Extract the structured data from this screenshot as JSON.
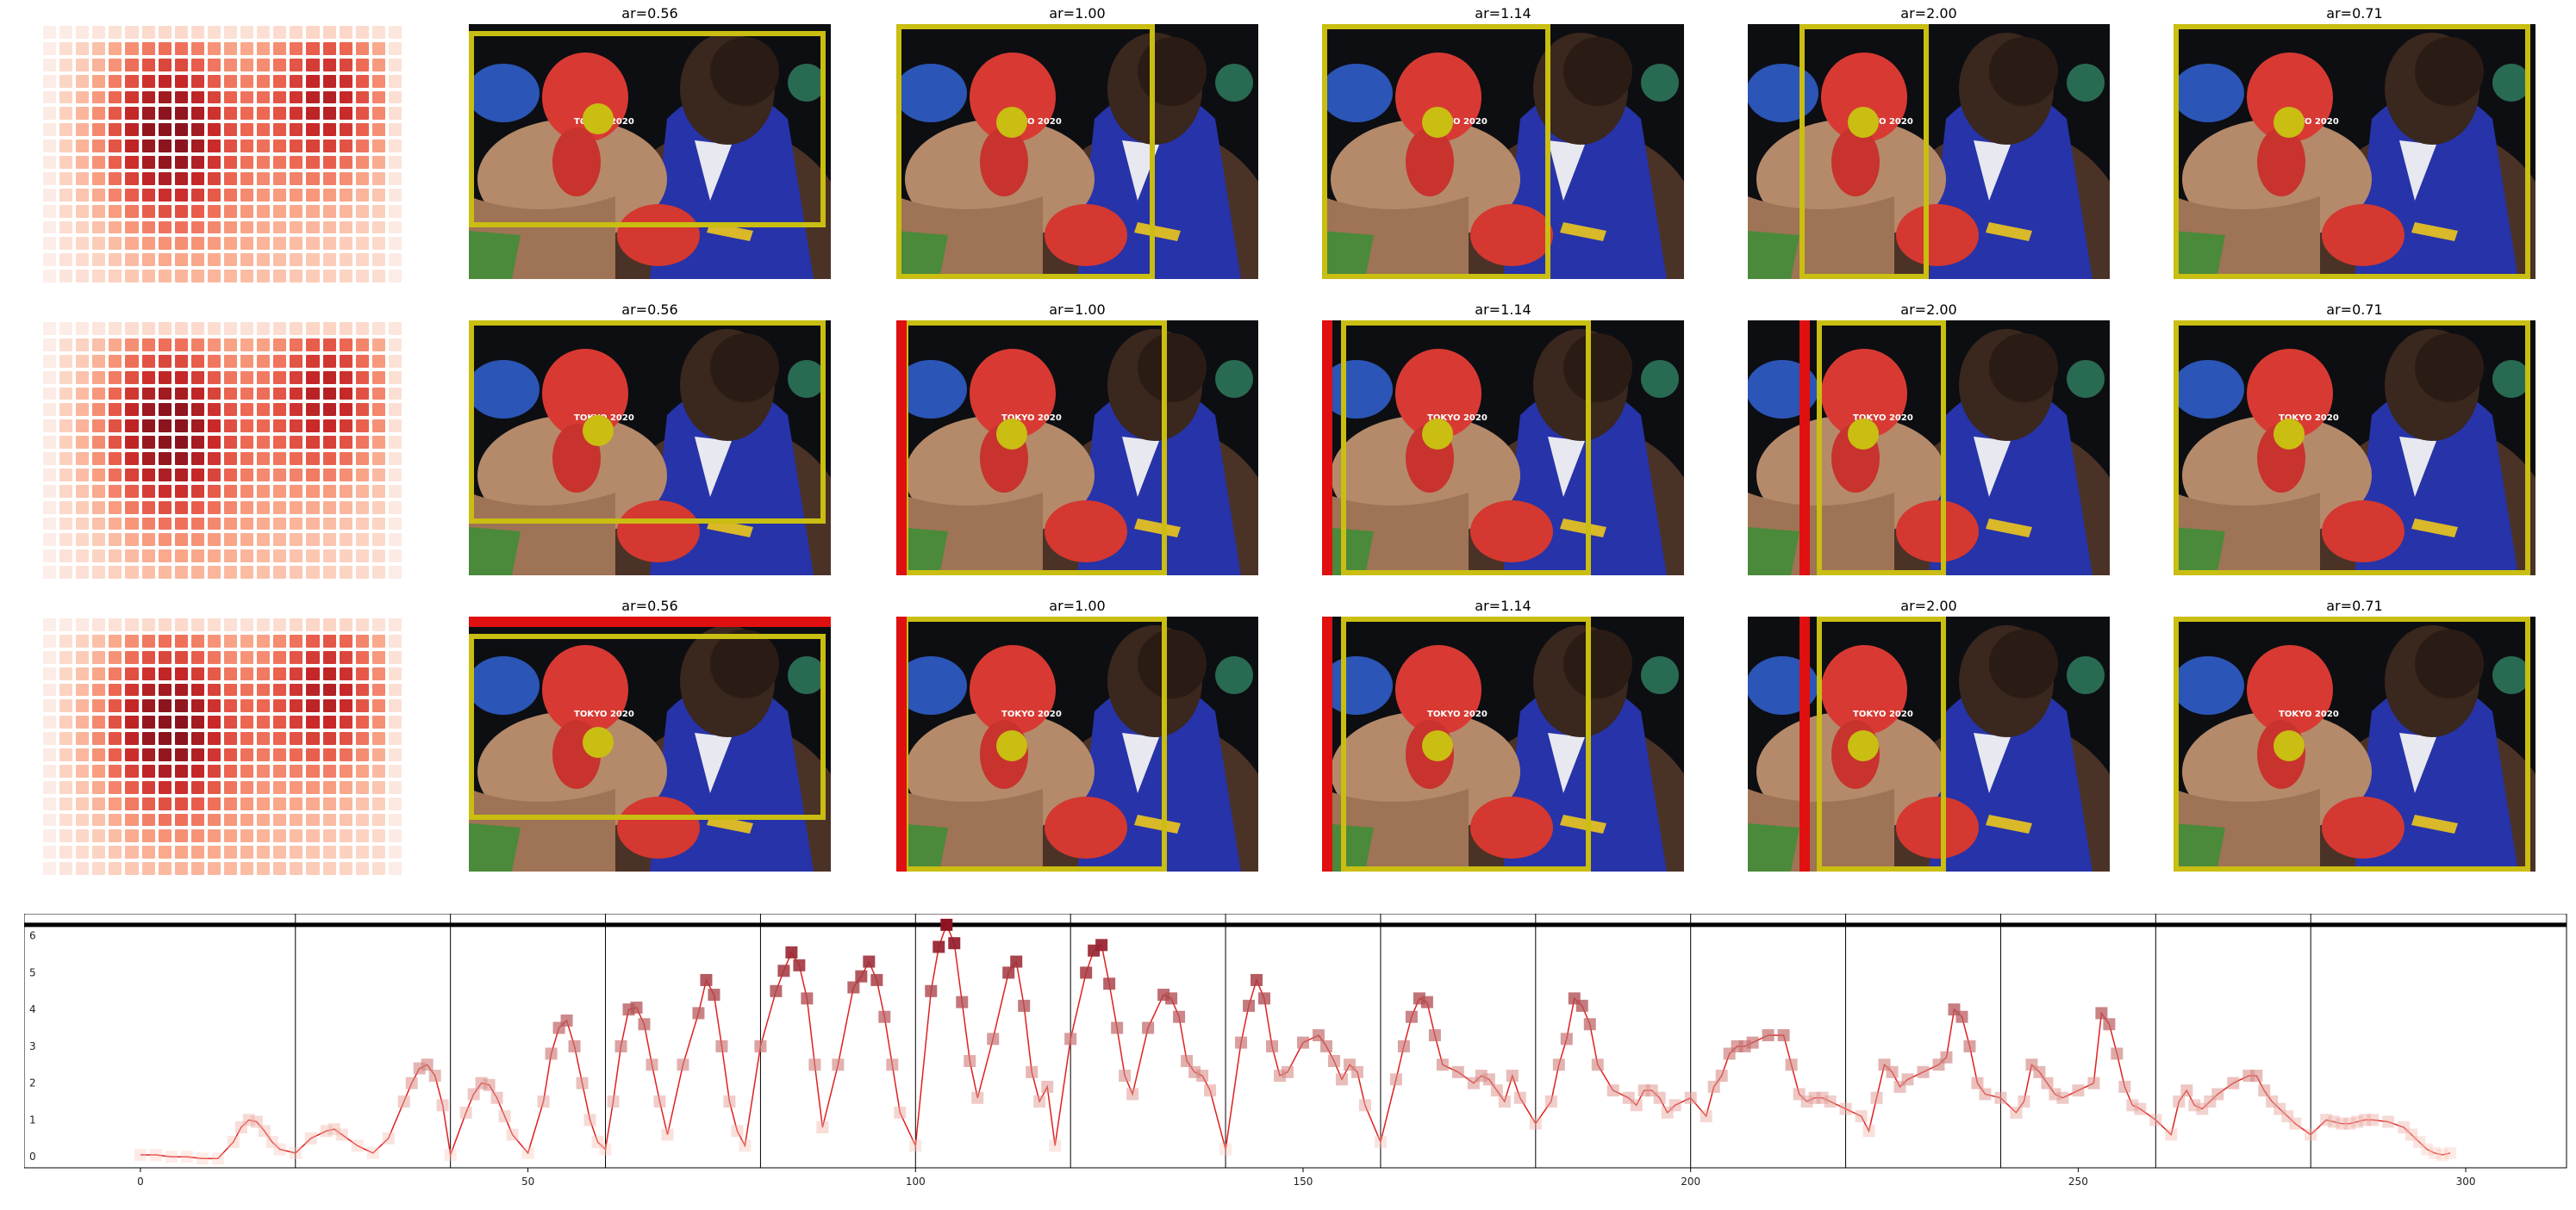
{
  "figure": {
    "rows": [
      {
        "panels": [
          {
            "title": "ar=0.56"
          },
          {
            "title": "ar=1.00"
          },
          {
            "title": "ar=1.14"
          },
          {
            "title": "ar=2.00"
          },
          {
            "title": "ar=0.71"
          }
        ]
      },
      {
        "panels": [
          {
            "title": "ar=0.56"
          },
          {
            "title": "ar=1.00"
          },
          {
            "title": "ar=1.14"
          },
          {
            "title": "ar=2.00"
          },
          {
            "title": "ar=0.71"
          }
        ]
      },
      {
        "panels": [
          {
            "title": "ar=0.56"
          },
          {
            "title": "ar=1.00"
          },
          {
            "title": "ar=1.14"
          },
          {
            "title": "ar=2.00"
          },
          {
            "title": "ar=0.71"
          }
        ]
      }
    ],
    "photo_overlay_text": "TOKYO 2020",
    "colors": {
      "crop_box": "#c9be11",
      "reference_box": "#e01010",
      "line": "#e02020",
      "threshold_line": "#000000"
    }
  },
  "chart_data": {
    "type": "line",
    "title": "",
    "xlabel": "",
    "ylabel": "",
    "xlim": [
      -15,
      313
    ],
    "ylim": [
      -0.3,
      6.6
    ],
    "xticks": [
      0,
      50,
      100,
      150,
      200,
      250,
      300
    ],
    "yticks": [
      0,
      1,
      2,
      3,
      4,
      5,
      6
    ],
    "threshold_y": 6.3,
    "segment_boundaries": [
      20,
      40,
      60,
      80,
      100,
      120,
      140,
      160,
      180,
      200,
      220,
      240,
      260,
      280
    ],
    "series": [
      {
        "x": [
          0,
          2,
          4,
          6,
          8,
          10,
          12,
          13,
          14,
          15,
          16,
          17,
          18,
          20,
          22,
          24,
          25,
          26,
          28,
          30,
          32,
          34,
          35,
          36,
          37,
          38,
          39,
          40,
          42,
          43,
          44,
          45,
          46,
          47,
          48,
          50,
          52,
          53,
          54,
          55,
          56,
          57,
          58,
          59,
          60,
          61,
          62,
          63,
          64,
          65,
          66,
          67,
          68,
          70,
          72,
          73,
          74,
          75,
          76,
          77,
          78,
          80,
          82,
          83,
          84,
          85,
          86,
          87,
          88,
          90,
          92,
          93,
          94,
          95,
          96,
          97,
          98,
          100,
          102,
          103,
          104,
          105,
          106,
          107,
          108,
          110,
          112,
          113,
          114,
          115,
          116,
          117,
          118,
          120,
          122,
          123,
          124,
          125,
          126,
          127,
          128,
          130,
          132,
          133,
          134,
          135,
          136,
          137,
          138,
          140,
          142,
          143,
          144,
          145,
          146,
          147,
          148,
          150,
          152,
          153,
          154,
          155,
          156,
          157,
          158,
          160,
          162,
          163,
          164,
          165,
          166,
          167,
          168,
          170,
          172,
          173,
          174,
          175,
          176,
          177,
          178,
          180,
          182,
          183,
          184,
          185,
          186,
          187,
          188,
          190,
          192,
          193,
          194,
          195,
          196,
          197,
          198,
          200,
          202,
          203,
          204,
          205,
          206,
          207,
          208,
          210,
          212,
          213,
          214,
          215,
          216,
          217,
          218,
          220,
          222,
          223,
          224,
          225,
          226,
          227,
          228,
          230,
          232,
          233,
          234,
          235,
          236,
          237,
          238,
          240,
          242,
          243,
          244,
          245,
          246,
          247,
          248,
          250,
          252,
          253,
          254,
          255,
          256,
          257,
          258,
          260,
          262,
          263,
          264,
          265,
          266,
          267,
          268,
          270,
          272,
          273,
          274,
          275,
          276,
          277,
          278,
          280,
          282,
          283,
          284,
          285,
          286,
          287,
          288,
          290,
          292,
          293,
          294,
          295,
          296,
          297,
          298
        ],
        "y": [
          0.05,
          0.05,
          0.0,
          0.0,
          -0.05,
          -0.05,
          0.4,
          0.8,
          1.0,
          0.95,
          0.7,
          0.4,
          0.2,
          0.1,
          0.5,
          0.7,
          0.75,
          0.6,
          0.3,
          0.1,
          0.5,
          1.5,
          2.0,
          2.4,
          2.5,
          2.2,
          1.4,
          0.05,
          1.2,
          1.7,
          2.0,
          1.95,
          1.6,
          1.1,
          0.6,
          0.1,
          1.5,
          2.8,
          3.5,
          3.7,
          3.0,
          2.0,
          1.0,
          0.4,
          0.2,
          1.5,
          3.0,
          4.0,
          4.05,
          3.6,
          2.5,
          1.5,
          0.6,
          2.5,
          3.9,
          4.8,
          4.4,
          3.0,
          1.5,
          0.7,
          0.3,
          3.0,
          4.5,
          5.05,
          5.55,
          5.2,
          4.3,
          2.5,
          0.8,
          2.5,
          4.6,
          4.9,
          5.3,
          4.8,
          3.8,
          2.5,
          1.2,
          0.3,
          4.5,
          5.7,
          6.3,
          5.8,
          4.2,
          2.6,
          1.6,
          3.2,
          5.0,
          5.3,
          4.1,
          2.3,
          1.5,
          1.9,
          0.3,
          3.2,
          5.0,
          5.6,
          5.75,
          4.7,
          3.5,
          2.2,
          1.7,
          3.5,
          4.4,
          4.3,
          3.8,
          2.6,
          2.3,
          2.2,
          1.8,
          0.2,
          3.1,
          4.1,
          4.8,
          4.3,
          3.0,
          2.2,
          2.3,
          3.1,
          3.3,
          3.0,
          2.6,
          2.1,
          2.5,
          2.3,
          1.4,
          0.4,
          2.1,
          3.0,
          3.8,
          4.3,
          4.2,
          3.3,
          2.5,
          2.3,
          2.0,
          2.2,
          2.1,
          1.8,
          1.5,
          2.2,
          1.6,
          0.9,
          1.5,
          2.5,
          3.2,
          4.3,
          4.1,
          3.6,
          2.5,
          1.8,
          1.6,
          1.4,
          1.8,
          1.8,
          1.6,
          1.2,
          1.4,
          1.6,
          1.1,
          1.9,
          2.2,
          2.8,
          3.0,
          3.0,
          3.1,
          3.3,
          3.3,
          2.5,
          1.7,
          1.5,
          1.6,
          1.6,
          1.5,
          1.3,
          1.1,
          0.7,
          1.6,
          2.5,
          2.3,
          1.9,
          2.1,
          2.3,
          2.5,
          2.7,
          4.0,
          3.8,
          3.0,
          2.0,
          1.7,
          1.6,
          1.2,
          1.5,
          2.5,
          2.3,
          2.0,
          1.7,
          1.6,
          1.8,
          2.0,
          3.9,
          3.6,
          2.8,
          1.9,
          1.4,
          1.3,
          1.0,
          0.6,
          1.5,
          1.8,
          1.4,
          1.3,
          1.5,
          1.7,
          2.0,
          2.2,
          2.2,
          1.8,
          1.5,
          1.3,
          1.1,
          0.9,
          0.6,
          1.0,
          0.95,
          0.9,
          0.9,
          0.95,
          1.0,
          1.0,
          0.95,
          0.8,
          0.6,
          0.4,
          0.2,
          0.1,
          0.05,
          0.1
        ]
      }
    ]
  }
}
